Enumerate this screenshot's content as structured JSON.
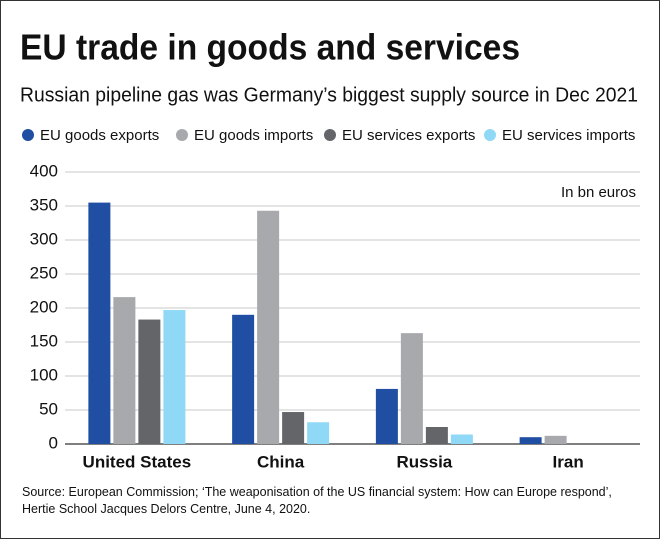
{
  "chart_data": {
    "type": "bar",
    "title": "EU trade in goods and services",
    "subtitle": "Russian pipeline gas was Germany’s biggest supply source in Dec 2021",
    "annotation": "In bn euros",
    "source": "Source: European Commission; ‘The weaponisation of the US financial system: How can Europe respond’, Hertie School Jacques Delors Centre, June 4, 2020.",
    "categories": [
      "United States",
      "China",
      "Russia",
      "Iran"
    ],
    "series": [
      {
        "name": "EU goods exports",
        "color": "#1f4ea3",
        "values": [
          355,
          190,
          81,
          10
        ]
      },
      {
        "name": "EU goods imports",
        "color": "#a7a9ac",
        "values": [
          216,
          343,
          163,
          12
        ]
      },
      {
        "name": "EU services exports",
        "color": "#646569",
        "values": [
          183,
          47,
          25,
          null
        ]
      },
      {
        "name": "EU services imports",
        "color": "#8fd9f6",
        "values": [
          197,
          32,
          14,
          null
        ]
      }
    ],
    "ylim": [
      0,
      400
    ],
    "yticks": [
      0,
      50,
      100,
      150,
      200,
      250,
      300,
      350,
      400
    ],
    "grid": true
  }
}
